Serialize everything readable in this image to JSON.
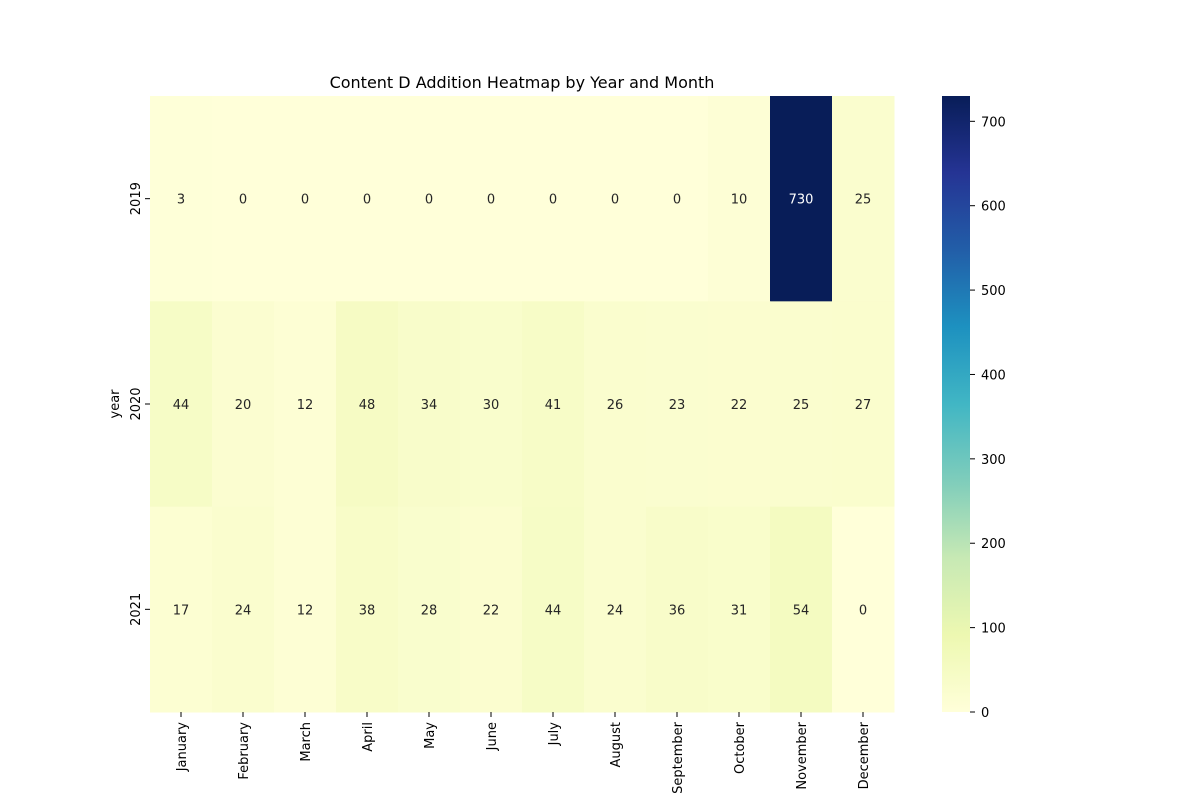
{
  "chart_data": {
    "type": "heatmap",
    "title": "Content D Addition Heatmap by Year and Month",
    "xlabel": "",
    "ylabel": "year",
    "x_categories": [
      "January",
      "February",
      "March",
      "April",
      "May",
      "June",
      "July",
      "August",
      "September",
      "October",
      "November",
      "December"
    ],
    "y_categories": [
      "2019",
      "2020",
      "2021"
    ],
    "values": [
      [
        3,
        0,
        0,
        0,
        0,
        0,
        0,
        0,
        0,
        10,
        730,
        25
      ],
      [
        44,
        20,
        12,
        48,
        34,
        30,
        41,
        26,
        23,
        22,
        25,
        27
      ],
      [
        17,
        24,
        12,
        38,
        28,
        22,
        44,
        24,
        36,
        31,
        54,
        0
      ]
    ],
    "colorscale": "YlGnBu",
    "colorbar": {
      "min": 0,
      "max": 730,
      "ticks": [
        0,
        100,
        200,
        300,
        400,
        500,
        600,
        700
      ]
    },
    "annotations": true,
    "grid": false
  }
}
